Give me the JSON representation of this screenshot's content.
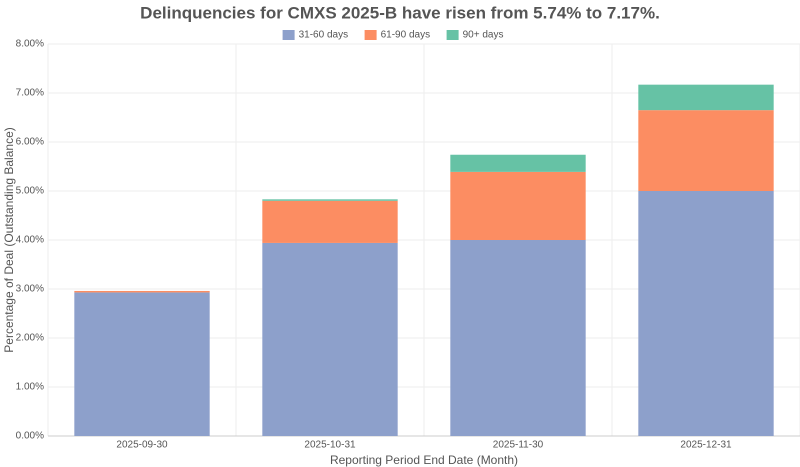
{
  "chart_data": {
    "type": "stacked-bar",
    "title": "Delinquencies for CMXS 2025-B have risen from 5.74% to 7.17%.",
    "x_label": "Reporting Period End Date (Month)",
    "y_label": "Percentage of Deal (Outstanding Balance)",
    "categories": [
      "2025-09-30",
      "2025-10-31",
      "2025-11-30",
      "2025-12-31"
    ],
    "series": [
      {
        "name": "31-60 days",
        "color": "#8da0cb",
        "values": [
          2.93,
          3.94,
          4.0,
          5.0
        ]
      },
      {
        "name": "61-90 days",
        "color": "#fc8d62",
        "values": [
          0.03,
          0.86,
          1.39,
          1.65
        ]
      },
      {
        "name": "90+ days",
        "color": "#66c2a5",
        "values": [
          0,
          0.03,
          0.35,
          0.52
        ]
      }
    ],
    "ylim": [
      0,
      8
    ],
    "yticks": [
      {
        "value": 0,
        "label": "0.00%"
      },
      {
        "value": 1,
        "label": "1.00%"
      },
      {
        "value": 2,
        "label": "2.00%"
      },
      {
        "value": 3,
        "label": "3.00%"
      },
      {
        "value": 4,
        "label": "4.00%"
      },
      {
        "value": 5,
        "label": "5.00%"
      },
      {
        "value": 6,
        "label": "6.00%"
      },
      {
        "value": 7,
        "label": "7.00%"
      },
      {
        "value": 8,
        "label": "8.00%"
      }
    ],
    "grid": true,
    "legend": "top"
  }
}
